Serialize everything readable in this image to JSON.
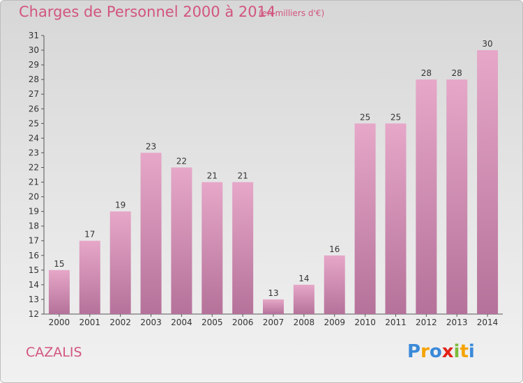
{
  "title": "Charges de Personnel 2000 à 2014",
  "subtitle": "(en milliers d'€)",
  "commune": "CAZALIS",
  "logo": {
    "letters": [
      {
        "ch": "P",
        "color": "#3b8ad9"
      },
      {
        "ch": "r",
        "color": "#f5a300"
      },
      {
        "ch": "o",
        "color": "#3b8ad9"
      },
      {
        "ch": "x",
        "color": "#e2231a"
      },
      {
        "ch": "i",
        "color": "#7cbc3b"
      },
      {
        "ch": "t",
        "color": "#f5a300"
      },
      {
        "ch": "i",
        "color": "#3b8ad9"
      }
    ]
  },
  "colors": {
    "bar_light": "#e6a7c8",
    "bar_dark": "#b5729a",
    "text_accent": "#d2557d"
  },
  "chart_data": {
    "type": "bar",
    "categories": [
      "2000",
      "2001",
      "2002",
      "2003",
      "2004",
      "2005",
      "2006",
      "2007",
      "2008",
      "2009",
      "2010",
      "2011",
      "2012",
      "2013",
      "2014"
    ],
    "values": [
      15,
      17,
      19,
      23,
      22,
      21,
      21,
      13,
      14,
      16,
      25,
      25,
      28,
      28,
      30
    ],
    "ylim": [
      12,
      31
    ],
    "yticks": [
      12,
      13,
      14,
      15,
      16,
      17,
      18,
      19,
      20,
      21,
      22,
      23,
      24,
      25,
      26,
      27,
      28,
      29,
      30,
      31
    ],
    "grid": false,
    "data_labels": true
  }
}
